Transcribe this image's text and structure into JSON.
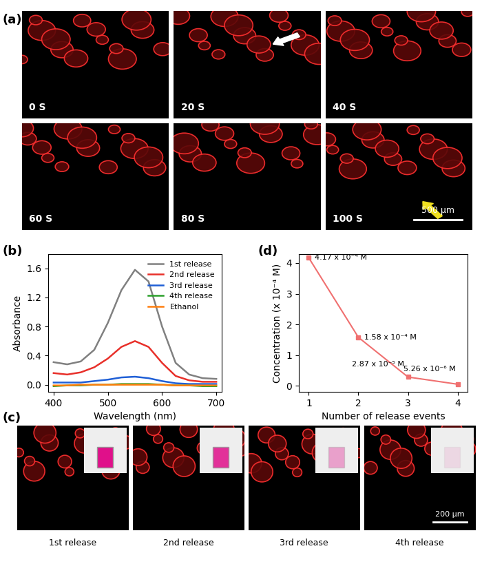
{
  "panel_labels": [
    "(a)",
    "(b)",
    "(c)",
    "(d)"
  ],
  "images_a": {
    "frames": [
      "0 S",
      "20 S",
      "40 S",
      "60 S",
      "80 S",
      "100 S"
    ],
    "scale_bar": "500 μm"
  },
  "images_c": {
    "captions": [
      "1st release",
      "2nd release",
      "3rd release",
      "4th release"
    ],
    "scale_bar": "200 μm"
  },
  "chart_data": [
    {
      "type": "line",
      "x_label": "Wavelength (nm)",
      "y_label": "Absorbance",
      "x": [
        400,
        425,
        450,
        475,
        500,
        525,
        550,
        575,
        600,
        625,
        650,
        675,
        700
      ],
      "series": [
        {
          "name": "1st release",
          "color": "#808080",
          "values": [
            0.31,
            0.28,
            0.32,
            0.48,
            0.85,
            1.3,
            1.58,
            1.42,
            0.8,
            0.3,
            0.14,
            0.09,
            0.08
          ]
        },
        {
          "name": "2nd release",
          "color": "#e8302a",
          "values": [
            0.16,
            0.14,
            0.17,
            0.24,
            0.36,
            0.52,
            0.6,
            0.52,
            0.3,
            0.12,
            0.06,
            0.04,
            0.04
          ]
        },
        {
          "name": "3rd release",
          "color": "#1f5fd6",
          "values": [
            0.03,
            0.03,
            0.03,
            0.05,
            0.07,
            0.1,
            0.11,
            0.09,
            0.05,
            0.02,
            0.01,
            0.01,
            0.01
          ]
        },
        {
          "name": "4th release",
          "color": "#2ca02c",
          "values": [
            -0.02,
            -0.01,
            -0.01,
            0.0,
            0.0,
            0.01,
            0.01,
            0.01,
            0.0,
            -0.01,
            -0.01,
            -0.02,
            -0.02
          ]
        },
        {
          "name": "Ethanol",
          "color": "#ff7f0e",
          "values": [
            -0.01,
            -0.01,
            0.0,
            0.0,
            0.0,
            0.0,
            0.0,
            0.0,
            0.0,
            -0.01,
            -0.01,
            -0.01,
            -0.01
          ]
        }
      ],
      "xlim": [
        390,
        710
      ],
      "ylim": [
        -0.1,
        1.8
      ],
      "xticks": [
        400,
        500,
        600,
        700
      ],
      "yticks": [
        {
          "value": 0,
          "label": "0.0"
        },
        {
          "value": 0.4,
          "label": "0.4"
        },
        {
          "value": 0.8,
          "label": "0.8"
        },
        {
          "value": 1.2,
          "label": "1.2"
        },
        {
          "value": 1.6,
          "label": "1.6"
        }
      ],
      "legend": "upper right"
    },
    {
      "type": "line",
      "x_label": "Number of release events",
      "y_label": "Concentration (x 10⁻⁴ M)",
      "x": [
        1,
        2,
        3,
        4
      ],
      "values": [
        4.17,
        1.58,
        0.287,
        0.0526
      ],
      "value_labels": [
        "4.17 x 10⁻⁴ M",
        "1.58 x 10⁻⁴ M",
        "2.87 x 10⁻⁵ M",
        "5.26 x 10⁻⁶ M"
      ],
      "data_labels": true,
      "color": "#f07070",
      "marker": "square",
      "xlim": [
        0.8,
        4.2
      ],
      "ylim": [
        -0.2,
        4.3
      ],
      "xticks": [
        1,
        2,
        3,
        4
      ],
      "yticks": [
        0,
        1,
        2,
        3,
        4
      ]
    }
  ]
}
